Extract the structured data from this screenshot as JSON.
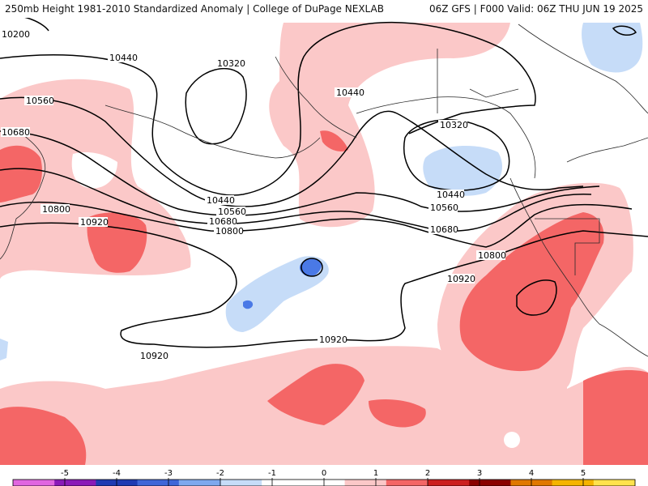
{
  "header": {
    "left": "250mb Height 1981-2010 Standardized Anomaly | College of DuPage NEXLAB",
    "right": "06Z GFS | F000 Valid: 06Z THU JUN 19 2025"
  },
  "colors": {
    "pos1": "#fbc8c8",
    "pos2": "#f46666",
    "neg1": "#c6dcf8",
    "neg2": "#4a79e6",
    "contour": "#000000",
    "coast": "#222222"
  },
  "contour_labels": [
    "10200",
    "10320",
    "10320",
    "10440",
    "10440",
    "10440",
    "10440",
    "10560",
    "10560",
    "10560",
    "10680",
    "10680",
    "10680",
    "10800",
    "10800",
    "10800",
    "10920",
    "10920",
    "10920",
    "10920"
  ],
  "legend": {
    "ticks": [
      "-5",
      "-4",
      "-3",
      "-2",
      "-1",
      "0",
      "1",
      "2",
      "3",
      "4",
      "5"
    ],
    "colors": [
      "#e066e0",
      "#8a1ab8",
      "#1f3ab3",
      "#3f66d8",
      "#7ea8ee",
      "#c6dcf8",
      "#ffffff",
      "#ffffff",
      "#fbc8c8",
      "#f46666",
      "#cc1f1f",
      "#8a0000",
      "#e07800",
      "#f5b400",
      "#ffe24d"
    ]
  }
}
